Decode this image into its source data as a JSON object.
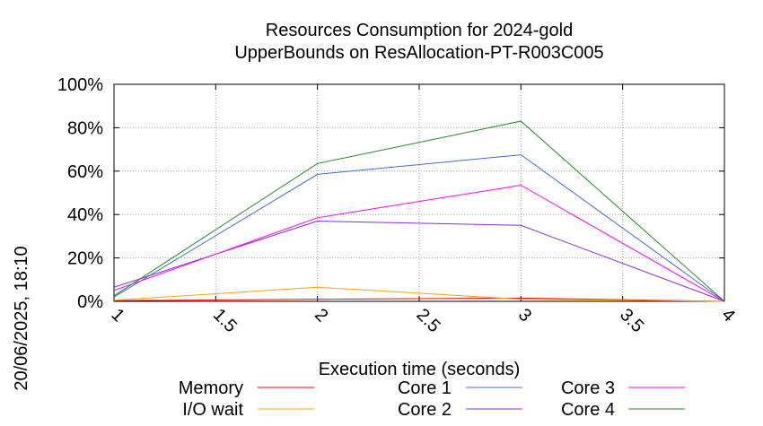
{
  "chart_data": {
    "type": "line",
    "title": "Resources Consumption for 2024-gold",
    "subtitle": "UpperBounds on ResAllocation-PT-R003C005",
    "xlabel": "Execution time (seconds)",
    "side_label": "20/06/2025, 18:10",
    "x_ticks": [
      "1",
      "1.5",
      "2",
      "2.5",
      "3",
      "3.5",
      "4"
    ],
    "y_ticks": [
      "0%",
      "20%",
      "40%",
      "60%",
      "80%",
      "100%"
    ],
    "xlim": [
      1,
      4
    ],
    "ylim": [
      0,
      100
    ],
    "grid": true,
    "legend_position": "bottom",
    "x": [
      1,
      2,
      3,
      4
    ],
    "series": [
      {
        "name": "Memory",
        "color": "#ff0000",
        "values": [
          0.3,
          1.0,
          1.5,
          0
        ]
      },
      {
        "name": "I/O wait",
        "color": "#ffa500",
        "values": [
          0.5,
          6.5,
          1.0,
          0
        ]
      },
      {
        "name": "Core 1",
        "color": "#4169e1",
        "values": [
          2,
          58.5,
          67.5,
          0
        ]
      },
      {
        "name": "Core 2",
        "color": "#8a2be2",
        "values": [
          6.5,
          37,
          35,
          0
        ]
      },
      {
        "name": "Core 3",
        "color": "#ff00ff",
        "values": [
          5,
          38.5,
          53.5,
          0
        ]
      },
      {
        "name": "Core 4",
        "color": "#228b22",
        "values": [
          2.5,
          63.5,
          83,
          0
        ]
      }
    ]
  }
}
